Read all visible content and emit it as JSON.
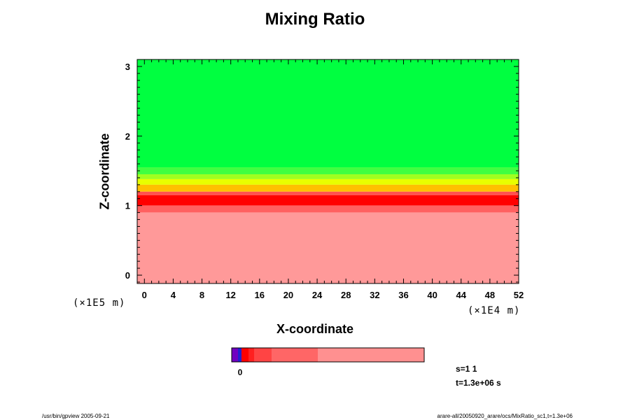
{
  "chart_data": {
    "type": "heatmap",
    "title": "Mixing Ratio",
    "xlabel": "X-coordinate",
    "ylabel": "Z-coordinate",
    "x_scale_note": "(×1E4 m)",
    "y_scale_note": "(×1E5 m)",
    "x_ticks": [
      "0",
      "4",
      "8",
      "12",
      "16",
      "20",
      "24",
      "28",
      "32",
      "36",
      "40",
      "44",
      "48",
      "52"
    ],
    "y_ticks": [
      "0",
      "1",
      "2",
      "3"
    ],
    "xlim": [
      -1,
      52
    ],
    "ylim": [
      -0.12,
      3.1
    ],
    "bands": [
      {
        "name": "upper",
        "color": "#00ff40",
        "from_z": 1.55,
        "to_z": 3.1
      },
      {
        "name": "transition-1",
        "color": "#40ff40",
        "from_z": 1.45,
        "to_z": 1.55
      },
      {
        "name": "transition-2",
        "color": "#a0ff20",
        "from_z": 1.38,
        "to_z": 1.45
      },
      {
        "name": "transition-3",
        "color": "#e8ff00",
        "from_z": 1.3,
        "to_z": 1.38
      },
      {
        "name": "transition-4",
        "color": "#ffc000",
        "from_z": 1.2,
        "to_z": 1.3
      },
      {
        "name": "transition-5",
        "color": "#ff5050",
        "from_z": 1.15,
        "to_z": 1.2
      },
      {
        "name": "peak",
        "color": "#ff0000",
        "from_z": 1.0,
        "to_z": 1.15
      },
      {
        "name": "lower-1",
        "color": "#ff6060",
        "from_z": 0.9,
        "to_z": 1.0
      },
      {
        "name": "lower",
        "color": "#ff9999",
        "from_z": -0.12,
        "to_z": 0.9
      }
    ],
    "colorbar": {
      "tick_label": "0",
      "segments": [
        "#7000c0",
        "#2020d0",
        "#ff0000",
        "#ff2020",
        "#ff4444",
        "#ff6666",
        "#ff9090"
      ]
    }
  },
  "status": {
    "s_label": "s=1 1",
    "t_label": "t=1.3e+06 s"
  },
  "footer": {
    "left": "/usr/bin/gpview 2005-09-21",
    "right": "arare-all/20050920_arare/ocs/MixRatio_sc1,t=1.3e+06"
  }
}
